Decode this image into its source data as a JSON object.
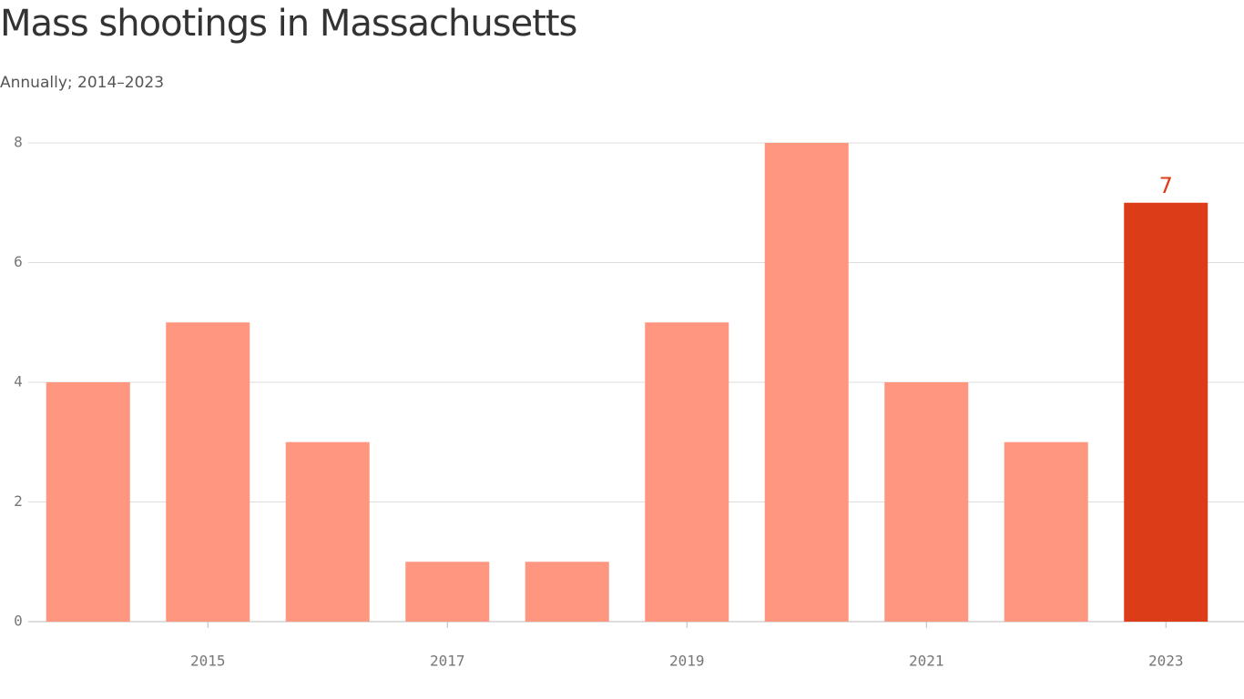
{
  "chart_data": {
    "type": "bar",
    "title": "Mass shootings in Massachusetts",
    "subtitle": "Annually; 2014–2023",
    "categories": [
      null,
      "2015",
      null,
      "2017",
      null,
      "2019",
      null,
      "2021",
      null,
      "2023"
    ],
    "values": [
      4,
      5,
      3,
      1,
      1,
      5,
      8,
      4,
      3,
      7
    ],
    "value_labels": [
      null,
      null,
      null,
      null,
      null,
      null,
      null,
      null,
      null,
      "7"
    ],
    "colors": [
      "#ff967f",
      "#ff967f",
      "#ff967f",
      "#ff967f",
      "#ff967f",
      "#ff967f",
      "#ff967f",
      "#ff967f",
      "#ff967f",
      "#dc3c17"
    ],
    "ylim": [
      0,
      8
    ],
    "yticks": [
      0,
      2,
      4,
      6,
      8
    ],
    "grid": true
  }
}
